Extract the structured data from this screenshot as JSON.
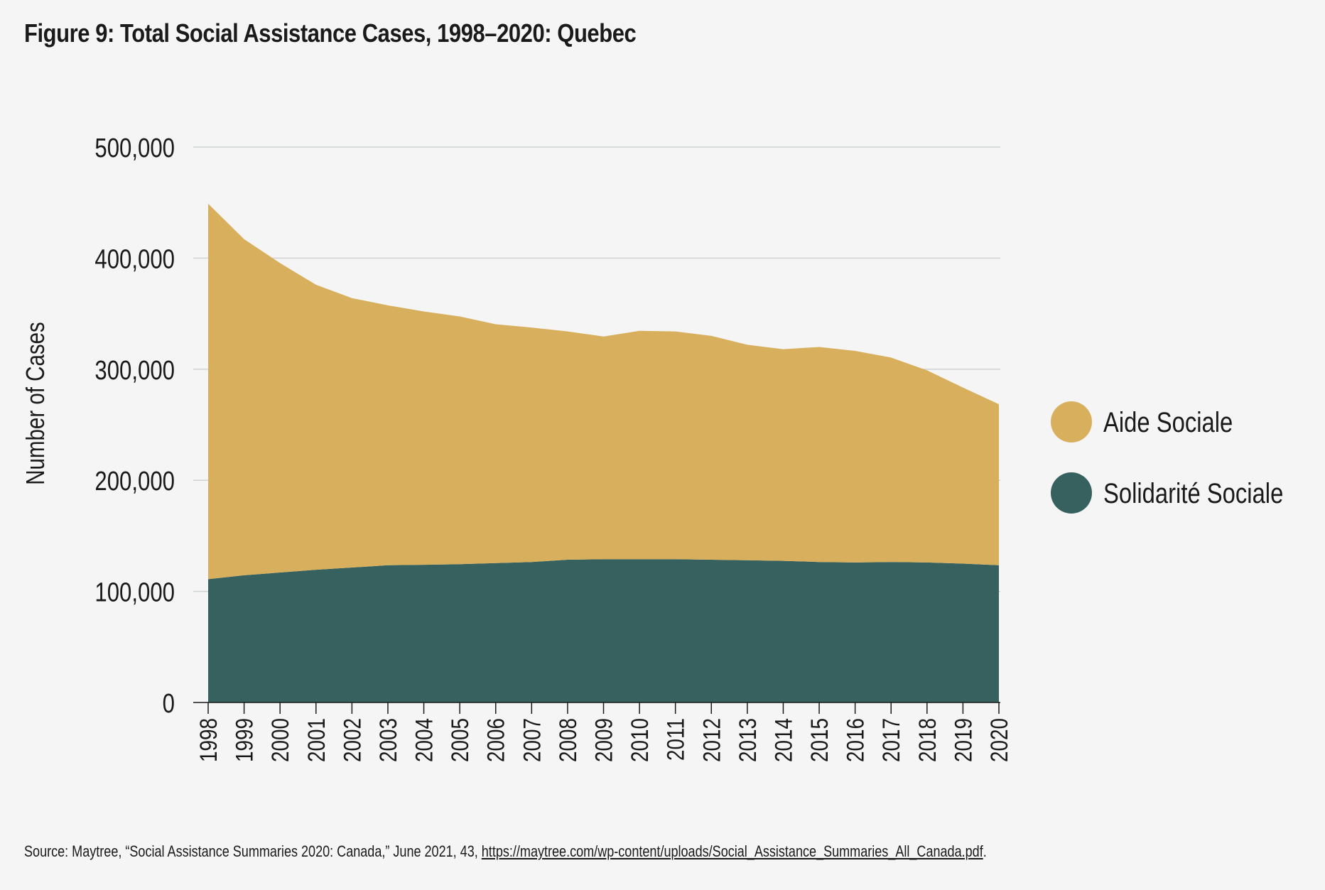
{
  "title": "Figure 9: Total Social Assistance Cases, 1998–2020: Quebec",
  "source": {
    "prefix": "Source: Maytree, “Social Assistance Summaries 2020: Canada,” June 2021, 43, ",
    "link": "https://maytree.com/wp-content/uploads/Social_Assistance_Summaries_All_Canada.pdf",
    "suffix": "."
  },
  "chart_data": {
    "type": "area",
    "stacked": true,
    "title": "Figure 9: Total Social Assistance Cases, 1998–2020: Quebec",
    "xlabel": "",
    "ylabel": "Number of Cases",
    "x": [
      "1998",
      "1999",
      "2000",
      "2001",
      "2002",
      "2003",
      "2004",
      "2005",
      "2006",
      "2007",
      "2008",
      "2009",
      "2010",
      "2011",
      "2012",
      "2013",
      "2014",
      "2015",
      "2016",
      "2017",
      "2018",
      "2019",
      "2020"
    ],
    "ylim": [
      0,
      500000
    ],
    "yticks": [
      0,
      100000,
      200000,
      300000,
      400000,
      500000
    ],
    "ytick_labels": [
      "0",
      "100,000",
      "200,000",
      "300,000",
      "400,000",
      "500,000"
    ],
    "grid": true,
    "legend_position": "right",
    "series": [
      {
        "name": "Solidarité Sociale",
        "color": "#37615f",
        "values": [
          111000,
          114500,
          117000,
          119500,
          121500,
          123500,
          124000,
          124500,
          125500,
          126500,
          128500,
          129000,
          129000,
          129000,
          128500,
          128000,
          127500,
          126500,
          126000,
          126500,
          126000,
          125000,
          123500
        ]
      },
      {
        "name": "Aide Sociale",
        "color": "#d8b05d",
        "values": [
          338000,
          302500,
          278500,
          256500,
          242500,
          234000,
          228000,
          223000,
          215000,
          211000,
          205500,
          200500,
          205500,
          205000,
          201500,
          194000,
          190500,
          193500,
          190500,
          184000,
          173000,
          158500,
          145000
        ]
      }
    ]
  }
}
